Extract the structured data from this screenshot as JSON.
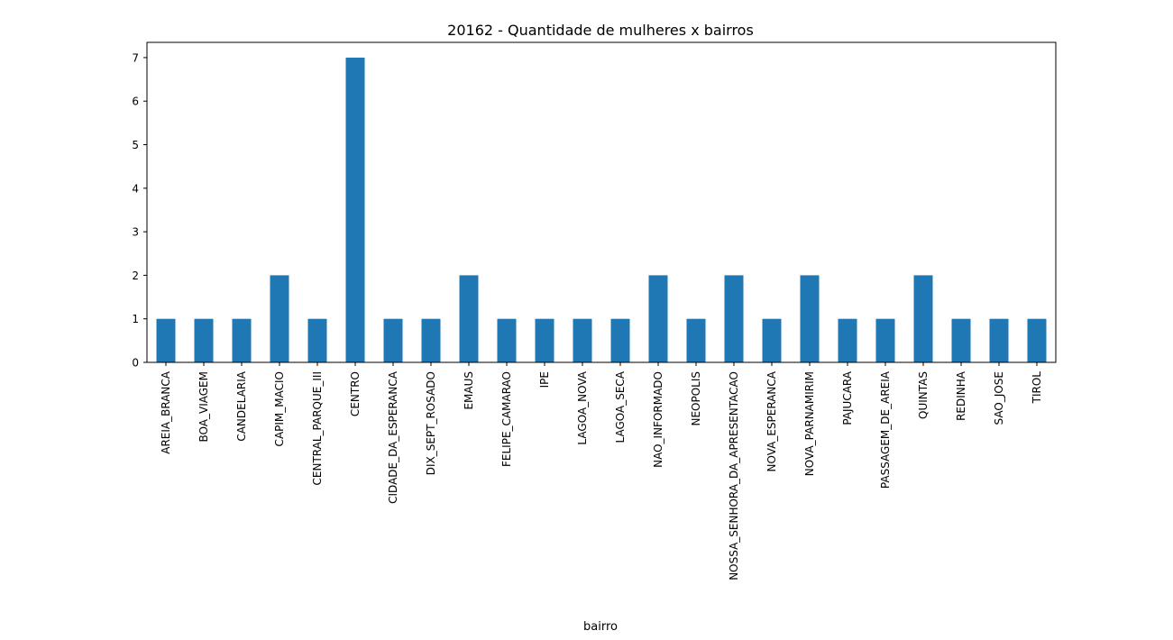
{
  "chart_data": {
    "type": "bar",
    "title": "20162 - Quantidade de mulheres x bairros",
    "xlabel": "bairro",
    "ylabel": "",
    "ylim": [
      0,
      7.35
    ],
    "yticks": [
      0,
      1,
      2,
      3,
      4,
      5,
      6,
      7
    ],
    "grid": false,
    "legend": "none",
    "bar_color": "#1f77b4",
    "categories": [
      "AREIA_BRANCA",
      "BOA_VIAGEM",
      "CANDELARIA",
      "CAPIM_MACIO",
      "CENTRAL_PARQUE_III",
      "CENTRO",
      "CIDADE_DA_ESPERANCA",
      "DIX_SEPT_ROSADO",
      "EMAUS",
      "FELIPE_CAMARAO",
      "IPE",
      "LAGOA_NOVA",
      "LAGOA_SECA",
      "NAO_INFORMADO",
      "NEOPOLIS",
      "NOSSA_SENHORA_DA_APRESENTACAO",
      "NOVA_ESPERANCA",
      "NOVA_PARNAMIRIM",
      "PAJUCARA",
      "PASSAGEM_DE_AREIA",
      "QUINTAS",
      "REDINHA",
      "SAO_JOSE",
      "TIROL"
    ],
    "values": [
      1,
      1,
      1,
      2,
      1,
      7,
      1,
      1,
      2,
      1,
      1,
      1,
      1,
      2,
      1,
      2,
      1,
      2,
      1,
      1,
      2,
      1,
      1,
      1
    ]
  }
}
